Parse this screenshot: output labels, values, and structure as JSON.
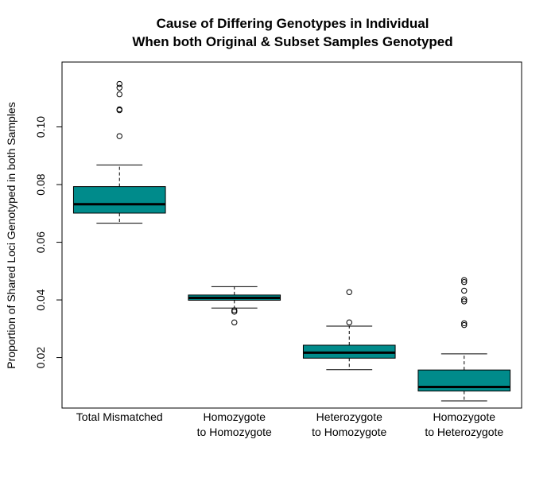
{
  "chart_data": {
    "type": "boxplot",
    "title": "Cause of Differing Genotypes in Individual",
    "subtitle": "When both Original & Subset Samples Genotyped",
    "xlabel": "",
    "ylabel": "Proportion of Shared Loci Genotyped in both Samples",
    "ylim": [
      0.0025,
      0.1225
    ],
    "yticks": [
      0.02,
      0.04,
      0.06,
      0.08,
      0.1
    ],
    "ytick_labels": [
      "0.02",
      "0.04",
      "0.06",
      "0.08",
      "0.10"
    ],
    "box_color": "#008B8B",
    "grid": false,
    "categories": [
      [
        "Total Mismatched"
      ],
      [
        "Homozygote",
        "to Homozygote"
      ],
      [
        "Heterozygote",
        "to Homozygote"
      ],
      [
        "Homozygote",
        "to Heterozygote"
      ]
    ],
    "boxes": [
      {
        "whisker_low": 0.0666,
        "q1": 0.0701,
        "median": 0.0732,
        "q3": 0.0793,
        "whisker_high": 0.0868,
        "outliers": [
          0.1149,
          0.1136,
          0.1113,
          0.1061,
          0.1058,
          0.0968
        ]
      },
      {
        "whisker_low": 0.0372,
        "q1": 0.0399,
        "median": 0.0407,
        "q3": 0.0417,
        "whisker_high": 0.0446,
        "outliers": [
          0.0364,
          0.0359,
          0.0322
        ]
      },
      {
        "whisker_low": 0.0158,
        "q1": 0.0198,
        "median": 0.0217,
        "q3": 0.0243,
        "whisker_high": 0.0309,
        "outliers": [
          0.0427,
          0.0322
        ]
      },
      {
        "whisker_low": 0.005,
        "q1": 0.0084,
        "median": 0.0098,
        "q3": 0.0157,
        "whisker_high": 0.0213,
        "outliers": [
          0.0469,
          0.0462,
          0.0432,
          0.0402,
          0.0395,
          0.0319,
          0.0313
        ]
      }
    ]
  }
}
